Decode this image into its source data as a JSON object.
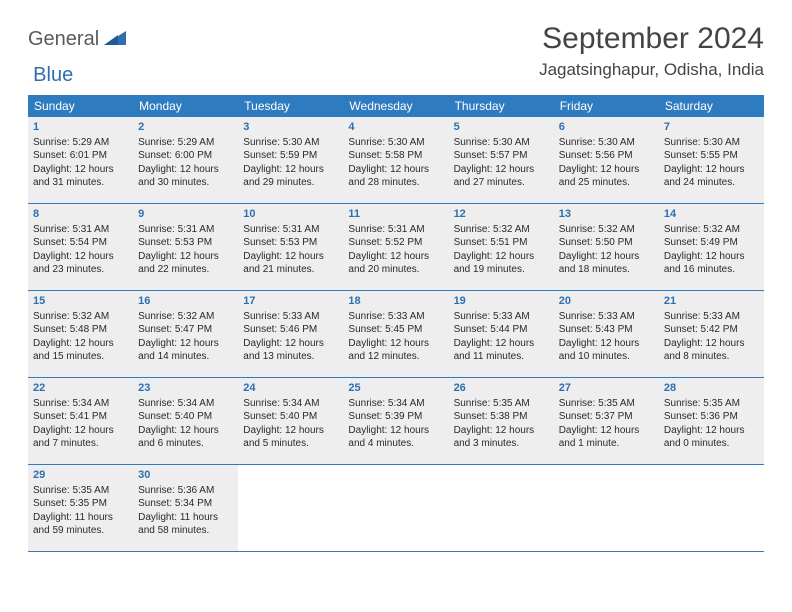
{
  "brand": {
    "part1": "General",
    "part2": "Blue"
  },
  "title": "September 2024",
  "location": "Jagatsinghapur, Odisha, India",
  "colors": {
    "header_bg": "#2f7bbf",
    "accent": "#2f6fb0",
    "cell_bg": "#eeeeee",
    "text": "#333333",
    "page_bg": "#ffffff"
  },
  "typography": {
    "title_fontsize": 30,
    "location_fontsize": 17,
    "dow_fontsize": 12,
    "daynum_fontsize": 11,
    "body_fontsize": 10
  },
  "days_of_week": [
    "Sunday",
    "Monday",
    "Tuesday",
    "Wednesday",
    "Thursday",
    "Friday",
    "Saturday"
  ],
  "weeks": [
    [
      {
        "n": "1",
        "sr": "Sunrise: 5:29 AM",
        "ss": "Sunset: 6:01 PM",
        "dl1": "Daylight: 12 hours",
        "dl2": "and 31 minutes."
      },
      {
        "n": "2",
        "sr": "Sunrise: 5:29 AM",
        "ss": "Sunset: 6:00 PM",
        "dl1": "Daylight: 12 hours",
        "dl2": "and 30 minutes."
      },
      {
        "n": "3",
        "sr": "Sunrise: 5:30 AM",
        "ss": "Sunset: 5:59 PM",
        "dl1": "Daylight: 12 hours",
        "dl2": "and 29 minutes."
      },
      {
        "n": "4",
        "sr": "Sunrise: 5:30 AM",
        "ss": "Sunset: 5:58 PM",
        "dl1": "Daylight: 12 hours",
        "dl2": "and 28 minutes."
      },
      {
        "n": "5",
        "sr": "Sunrise: 5:30 AM",
        "ss": "Sunset: 5:57 PM",
        "dl1": "Daylight: 12 hours",
        "dl2": "and 27 minutes."
      },
      {
        "n": "6",
        "sr": "Sunrise: 5:30 AM",
        "ss": "Sunset: 5:56 PM",
        "dl1": "Daylight: 12 hours",
        "dl2": "and 25 minutes."
      },
      {
        "n": "7",
        "sr": "Sunrise: 5:30 AM",
        "ss": "Sunset: 5:55 PM",
        "dl1": "Daylight: 12 hours",
        "dl2": "and 24 minutes."
      }
    ],
    [
      {
        "n": "8",
        "sr": "Sunrise: 5:31 AM",
        "ss": "Sunset: 5:54 PM",
        "dl1": "Daylight: 12 hours",
        "dl2": "and 23 minutes."
      },
      {
        "n": "9",
        "sr": "Sunrise: 5:31 AM",
        "ss": "Sunset: 5:53 PM",
        "dl1": "Daylight: 12 hours",
        "dl2": "and 22 minutes."
      },
      {
        "n": "10",
        "sr": "Sunrise: 5:31 AM",
        "ss": "Sunset: 5:53 PM",
        "dl1": "Daylight: 12 hours",
        "dl2": "and 21 minutes."
      },
      {
        "n": "11",
        "sr": "Sunrise: 5:31 AM",
        "ss": "Sunset: 5:52 PM",
        "dl1": "Daylight: 12 hours",
        "dl2": "and 20 minutes."
      },
      {
        "n": "12",
        "sr": "Sunrise: 5:32 AM",
        "ss": "Sunset: 5:51 PM",
        "dl1": "Daylight: 12 hours",
        "dl2": "and 19 minutes."
      },
      {
        "n": "13",
        "sr": "Sunrise: 5:32 AM",
        "ss": "Sunset: 5:50 PM",
        "dl1": "Daylight: 12 hours",
        "dl2": "and 18 minutes."
      },
      {
        "n": "14",
        "sr": "Sunrise: 5:32 AM",
        "ss": "Sunset: 5:49 PM",
        "dl1": "Daylight: 12 hours",
        "dl2": "and 16 minutes."
      }
    ],
    [
      {
        "n": "15",
        "sr": "Sunrise: 5:32 AM",
        "ss": "Sunset: 5:48 PM",
        "dl1": "Daylight: 12 hours",
        "dl2": "and 15 minutes."
      },
      {
        "n": "16",
        "sr": "Sunrise: 5:32 AM",
        "ss": "Sunset: 5:47 PM",
        "dl1": "Daylight: 12 hours",
        "dl2": "and 14 minutes."
      },
      {
        "n": "17",
        "sr": "Sunrise: 5:33 AM",
        "ss": "Sunset: 5:46 PM",
        "dl1": "Daylight: 12 hours",
        "dl2": "and 13 minutes."
      },
      {
        "n": "18",
        "sr": "Sunrise: 5:33 AM",
        "ss": "Sunset: 5:45 PM",
        "dl1": "Daylight: 12 hours",
        "dl2": "and 12 minutes."
      },
      {
        "n": "19",
        "sr": "Sunrise: 5:33 AM",
        "ss": "Sunset: 5:44 PM",
        "dl1": "Daylight: 12 hours",
        "dl2": "and 11 minutes."
      },
      {
        "n": "20",
        "sr": "Sunrise: 5:33 AM",
        "ss": "Sunset: 5:43 PM",
        "dl1": "Daylight: 12 hours",
        "dl2": "and 10 minutes."
      },
      {
        "n": "21",
        "sr": "Sunrise: 5:33 AM",
        "ss": "Sunset: 5:42 PM",
        "dl1": "Daylight: 12 hours",
        "dl2": "and 8 minutes."
      }
    ],
    [
      {
        "n": "22",
        "sr": "Sunrise: 5:34 AM",
        "ss": "Sunset: 5:41 PM",
        "dl1": "Daylight: 12 hours",
        "dl2": "and 7 minutes."
      },
      {
        "n": "23",
        "sr": "Sunrise: 5:34 AM",
        "ss": "Sunset: 5:40 PM",
        "dl1": "Daylight: 12 hours",
        "dl2": "and 6 minutes."
      },
      {
        "n": "24",
        "sr": "Sunrise: 5:34 AM",
        "ss": "Sunset: 5:40 PM",
        "dl1": "Daylight: 12 hours",
        "dl2": "and 5 minutes."
      },
      {
        "n": "25",
        "sr": "Sunrise: 5:34 AM",
        "ss": "Sunset: 5:39 PM",
        "dl1": "Daylight: 12 hours",
        "dl2": "and 4 minutes."
      },
      {
        "n": "26",
        "sr": "Sunrise: 5:35 AM",
        "ss": "Sunset: 5:38 PM",
        "dl1": "Daylight: 12 hours",
        "dl2": "and 3 minutes."
      },
      {
        "n": "27",
        "sr": "Sunrise: 5:35 AM",
        "ss": "Sunset: 5:37 PM",
        "dl1": "Daylight: 12 hours",
        "dl2": "and 1 minute."
      },
      {
        "n": "28",
        "sr": "Sunrise: 5:35 AM",
        "ss": "Sunset: 5:36 PM",
        "dl1": "Daylight: 12 hours",
        "dl2": "and 0 minutes."
      }
    ],
    [
      {
        "n": "29",
        "sr": "Sunrise: 5:35 AM",
        "ss": "Sunset: 5:35 PM",
        "dl1": "Daylight: 11 hours",
        "dl2": "and 59 minutes."
      },
      {
        "n": "30",
        "sr": "Sunrise: 5:36 AM",
        "ss": "Sunset: 5:34 PM",
        "dl1": "Daylight: 11 hours",
        "dl2": "and 58 minutes."
      },
      null,
      null,
      null,
      null,
      null
    ]
  ]
}
